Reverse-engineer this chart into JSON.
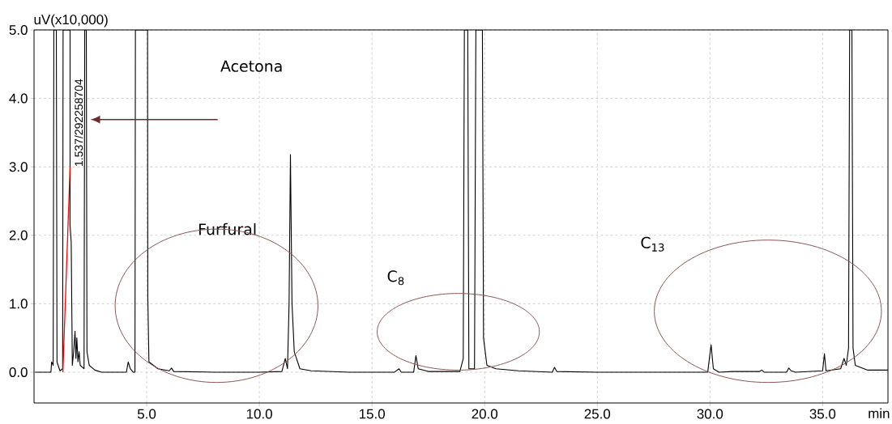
{
  "chart_data": {
    "type": "line",
    "xlabel": "min",
    "ylabel": "uV(x10,000)",
    "xlim": [
      0,
      37.9
    ],
    "ylim": [
      -0.45,
      5.0
    ],
    "xticks": [
      {
        "value": 5,
        "label": "5.0"
      },
      {
        "value": 10,
        "label": "10.0"
      },
      {
        "value": 15,
        "label": "15.0"
      },
      {
        "value": 20,
        "label": "20.0"
      },
      {
        "value": 25,
        "label": "25.0"
      },
      {
        "value": 30,
        "label": "30.0"
      },
      {
        "value": 35,
        "label": "35.0"
      }
    ],
    "yticks": [
      {
        "value": 0,
        "label": "0.0"
      },
      {
        "value": 1,
        "label": "1.0"
      },
      {
        "value": 2,
        "label": "2.0"
      },
      {
        "value": 3,
        "label": "3.0"
      },
      {
        "value": 4,
        "label": "4.0"
      },
      {
        "value": 5,
        "label": "5.0"
      }
    ],
    "grid": true,
    "series": [
      {
        "color": "#000000",
        "x": [
          0.05,
          0.75,
          0.78,
          0.85,
          0.88,
          0.99,
          1.02,
          1.15,
          1.27,
          1.29,
          1.6,
          1.6,
          1.65,
          1.7,
          1.76,
          1.82,
          1.86,
          1.9,
          1.95,
          2.0,
          2.05,
          2.22,
          2.25,
          2.32,
          2.35,
          2.45,
          2.7,
          3.0,
          4.1,
          4.18,
          4.27,
          4.4,
          4.48,
          4.5,
          5.04,
          5.05,
          5.1,
          5.5,
          6.0,
          6.1,
          6.2,
          8.0,
          10.0,
          11.0,
          11.15,
          11.25,
          11.32,
          11.38,
          11.45,
          11.55,
          11.8,
          12.3,
          14.0,
          16.0,
          16.2,
          16.3,
          16.85,
          16.95,
          17.05,
          17.5,
          18.9,
          19.05,
          19.1,
          19.25,
          19.3,
          19.55,
          19.61,
          19.9,
          19.95,
          20.1,
          20.5,
          21.5,
          23.0,
          23.1,
          23.2,
          25.0,
          28.0,
          29.9,
          30.05,
          30.15,
          30.4,
          31.0,
          32.2,
          32.3,
          32.4,
          33.4,
          33.5,
          33.6,
          33.8,
          35.0,
          35.08,
          35.15,
          35.8,
          35.95,
          36.05,
          36.15,
          36.2,
          36.3,
          36.35,
          36.45,
          37.0,
          37.9
        ],
        "values": [
          0.0,
          0.0,
          0.15,
          0.1,
          5.0,
          5.0,
          0.15,
          0.02,
          0.05,
          5.0,
          5.0,
          2.15,
          1.9,
          0.1,
          0.3,
          0.6,
          0.2,
          0.5,
          0.15,
          0.3,
          0.1,
          0.05,
          5.0,
          5.0,
          0.3,
          0.1,
          0.03,
          0.0,
          0.0,
          0.15,
          0.05,
          0.0,
          0.0,
          5.0,
          5.0,
          1.1,
          0.15,
          0.05,
          0.02,
          0.06,
          0.01,
          0.0,
          0.0,
          0.01,
          0.2,
          0.05,
          1.0,
          3.18,
          1.0,
          0.3,
          0.05,
          0.02,
          0.0,
          0.0,
          0.05,
          0.0,
          0.0,
          0.24,
          0.05,
          0.01,
          0.01,
          0.2,
          5.0,
          5.0,
          0.05,
          0.05,
          5.0,
          5.0,
          0.5,
          0.1,
          0.05,
          0.02,
          0.0,
          0.07,
          0.01,
          0.0,
          0.0,
          0.0,
          0.4,
          0.05,
          0.0,
          0.01,
          0.01,
          0.03,
          0.0,
          0.0,
          0.06,
          0.02,
          0.0,
          0.02,
          0.27,
          0.02,
          0.05,
          0.2,
          0.1,
          0.35,
          5.0,
          5.0,
          0.35,
          0.1,
          0.03,
          0.03
        ]
      },
      {
        "color": "#ff0000",
        "x": [
          1.28,
          1.6
        ],
        "values": [
          0.0,
          3.0
        ]
      }
    ],
    "annotations": [
      {
        "text": "1.537/292258704",
        "x": 1.537,
        "y": 3.0
      },
      "Acetona",
      "Furfural",
      "C$_{8}$",
      "C$_{13}$"
    ]
  }
}
